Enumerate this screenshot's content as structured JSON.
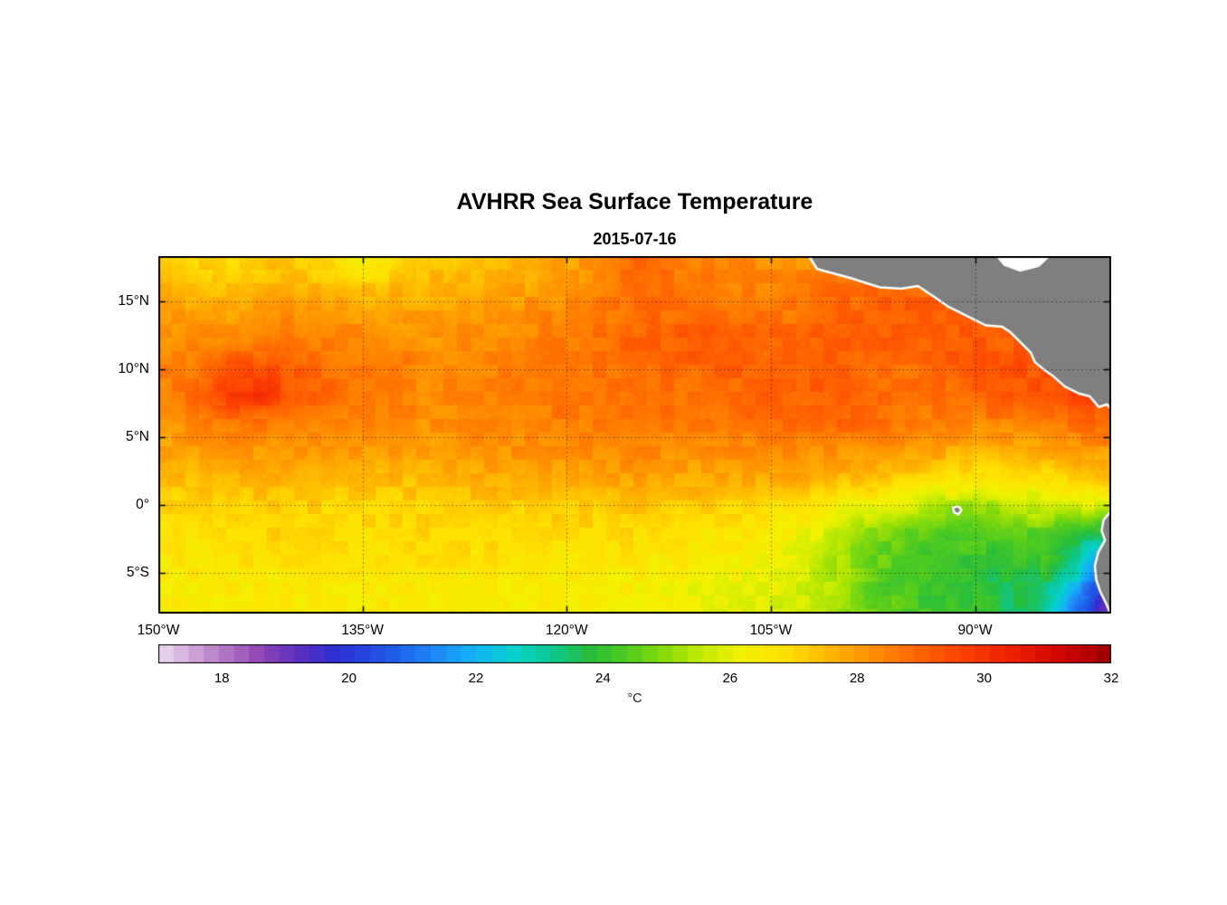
{
  "figure": {
    "title": "AVHRR Sea Surface Temperature",
    "subtitle": "2015-07-16",
    "background": "#ffffff"
  },
  "axes": {
    "lon_min": -150,
    "lon_max": -80,
    "lat_min": -8.0,
    "lat_max": 18.3,
    "grid_style": "dotted",
    "frame_color": "#000000",
    "x_ticks": [
      {
        "lon": -150,
        "label": "150°W"
      },
      {
        "lon": -135,
        "label": "135°W"
      },
      {
        "lon": -120,
        "label": "120°W"
      },
      {
        "lon": -105,
        "label": "105°W"
      },
      {
        "lon": -90,
        "label": "90°W"
      }
    ],
    "y_ticks": [
      {
        "lat": 15,
        "label": "15°N"
      },
      {
        "lat": 10,
        "label": "10°N"
      },
      {
        "lat": 5,
        "label": "5°N"
      },
      {
        "lat": 0,
        "label": "0°"
      },
      {
        "lat": -5,
        "label": "5°S"
      }
    ]
  },
  "colorbar": {
    "min": 17,
    "max": 32,
    "tick_values": [
      18,
      20,
      22,
      24,
      26,
      28,
      30,
      32
    ],
    "tick_labels": [
      "18",
      "20",
      "22",
      "24",
      "26",
      "28",
      "30",
      "32"
    ],
    "unit_label": "°C",
    "segments": 63
  },
  "colors": {
    "land": "#7f7f7f",
    "coast_outline": "#ffffff",
    "no_data": "#ffffff"
  },
  "chart_data": {
    "type": "heatmap",
    "title": "AVHRR Sea Surface Temperature",
    "date": "2015-07-16",
    "units": "°C",
    "value_range": [
      17,
      32
    ],
    "lons": [
      -150,
      -147.5,
      -145,
      -142.5,
      -140,
      -137.5,
      -135,
      -132.5,
      -130,
      -127.5,
      -125,
      -122.5,
      -120,
      -117.5,
      -115,
      -112.5,
      -110,
      -107.5,
      -105,
      -102.5,
      -100,
      -97.5,
      -95,
      -92.5,
      -90,
      -87.5,
      -85,
      -82.5,
      -80
    ],
    "lats": [
      18,
      16,
      14,
      12,
      10,
      8,
      6,
      4,
      2,
      0,
      -2,
      -4,
      -6,
      -8
    ],
    "sst": [
      [
        27.2,
        27.1,
        27.0,
        27.2,
        27.3,
        27.0,
        26.3,
        26.9,
        27.3,
        27.4,
        27.6,
        27.7,
        27.8,
        28.4,
        29.0,
        28.7,
        28.4,
        28.3,
        28.2,
        28.1,
        28.0,
        28.2,
        28.5,
        28.5,
        28.5,
        28.5,
        28.5,
        28.5,
        28.5
      ],
      [
        27.6,
        27.5,
        27.4,
        27.5,
        27.6,
        27.5,
        27.4,
        27.5,
        27.6,
        27.7,
        27.8,
        27.9,
        28.0,
        28.4,
        28.8,
        28.7,
        28.6,
        28.5,
        28.4,
        28.6,
        28.8,
        28.9,
        29.0,
        29.0,
        29.0,
        29.0,
        29.0,
        29.0,
        29.0
      ],
      [
        28.0,
        28.0,
        28.0,
        28.1,
        28.2,
        28.1,
        28.0,
        28.0,
        28.0,
        28.1,
        28.2,
        28.3,
        28.4,
        28.6,
        28.8,
        28.9,
        29.0,
        28.8,
        28.6,
        28.8,
        29.0,
        29.1,
        29.2,
        29.1,
        29.0,
        29.0,
        29.0,
        29.0,
        29.0
      ],
      [
        28.2,
        28.3,
        28.4,
        28.5,
        28.6,
        28.5,
        28.4,
        28.3,
        28.2,
        28.3,
        28.4,
        28.5,
        28.6,
        28.8,
        29.0,
        29.1,
        29.2,
        29.1,
        29.0,
        29.1,
        29.2,
        29.1,
        29.0,
        29.1,
        29.2,
        29.1,
        29.0,
        29.0,
        29.0
      ],
      [
        28.4,
        28.5,
        29.3,
        29.6,
        29.0,
        28.8,
        28.6,
        28.5,
        28.4,
        28.4,
        28.4,
        28.5,
        28.6,
        28.7,
        28.8,
        28.9,
        29.0,
        29.1,
        29.2,
        29.1,
        29.0,
        28.9,
        28.8,
        29.0,
        29.2,
        29.3,
        29.4,
        29.3,
        29.2
      ],
      [
        28.6,
        28.8,
        29.8,
        30.1,
        29.2,
        28.9,
        28.6,
        28.5,
        28.4,
        28.5,
        28.6,
        28.6,
        28.6,
        28.7,
        28.8,
        28.8,
        28.8,
        28.9,
        29.0,
        29.1,
        29.2,
        29.0,
        28.8,
        28.9,
        29.0,
        29.2,
        29.4,
        29.5,
        29.6
      ],
      [
        28.2,
        28.4,
        28.6,
        28.6,
        28.6,
        28.5,
        28.4,
        28.3,
        28.2,
        28.3,
        28.4,
        28.5,
        28.6,
        28.6,
        28.6,
        28.6,
        28.6,
        28.7,
        28.8,
        28.9,
        29.0,
        28.8,
        28.6,
        28.5,
        28.4,
        28.5,
        28.6,
        28.8,
        29.0
      ],
      [
        27.8,
        27.9,
        28.0,
        28.1,
        28.2,
        28.1,
        28.0,
        28.0,
        28.0,
        28.1,
        28.2,
        28.2,
        28.2,
        28.3,
        28.4,
        28.3,
        28.2,
        28.3,
        28.4,
        28.3,
        28.2,
        28.1,
        28.0,
        27.8,
        27.6,
        27.7,
        27.8,
        28.0,
        28.2
      ],
      [
        27.4,
        27.5,
        27.6,
        27.6,
        27.6,
        27.5,
        27.5,
        27.5,
        27.6,
        27.7,
        27.8,
        27.8,
        27.8,
        27.9,
        28.0,
        27.9,
        27.8,
        27.8,
        27.8,
        27.7,
        27.6,
        27.4,
        27.2,
        27.0,
        26.8,
        26.8,
        26.9,
        27.1,
        27.4
      ],
      [
        27.0,
        27.1,
        27.2,
        27.2,
        27.2,
        27.1,
        27.1,
        27.1,
        27.2,
        27.2,
        27.3,
        27.2,
        27.2,
        27.3,
        27.4,
        27.3,
        27.2,
        27.1,
        27.0,
        26.8,
        26.5,
        26.2,
        26.0,
        25.4,
        25.2,
        25.5,
        25.8,
        26.0,
        26.0
      ],
      [
        26.8,
        26.9,
        26.9,
        27.0,
        27.0,
        27.0,
        26.9,
        27.0,
        27.0,
        27.0,
        27.0,
        27.0,
        26.9,
        27.0,
        27.0,
        26.9,
        26.8,
        26.7,
        26.6,
        26.2,
        25.6,
        25.0,
        24.6,
        24.4,
        24.4,
        24.5,
        24.6,
        24.0,
        23.4
      ],
      [
        26.6,
        26.7,
        26.7,
        26.8,
        26.8,
        26.8,
        26.7,
        26.8,
        26.8,
        26.8,
        26.8,
        26.8,
        26.7,
        26.7,
        26.7,
        26.6,
        26.5,
        26.4,
        26.2,
        25.8,
        25.3,
        24.7,
        24.3,
        24.1,
        24.0,
        24.1,
        24.2,
        23.0,
        21.2
      ],
      [
        26.5,
        26.5,
        26.6,
        26.6,
        26.6,
        26.6,
        26.5,
        26.6,
        26.6,
        26.6,
        26.5,
        26.5,
        26.5,
        26.5,
        26.4,
        26.3,
        26.2,
        26.1,
        26.0,
        25.7,
        25.2,
        24.6,
        24.2,
        24.0,
        23.8,
        23.7,
        23.6,
        22.0,
        19.6
      ],
      [
        26.4,
        26.4,
        26.5,
        26.5,
        26.5,
        26.5,
        26.4,
        26.5,
        26.5,
        26.5,
        26.4,
        26.4,
        26.4,
        26.3,
        26.3,
        26.2,
        26.1,
        26.0,
        25.8,
        25.6,
        25.2,
        24.8,
        24.4,
        24.2,
        24.0,
        23.6,
        23.2,
        21.0,
        18.8
      ]
    ],
    "colormap_stops": [
      [
        17.0,
        "#ecdcf0"
      ],
      [
        17.8,
        "#c08cce"
      ],
      [
        18.6,
        "#9146b4"
      ],
      [
        19.2,
        "#5c2fc0"
      ],
      [
        19.8,
        "#2d2fd2"
      ],
      [
        20.6,
        "#2257e8"
      ],
      [
        21.4,
        "#1e8cf8"
      ],
      [
        22.0,
        "#12b4f4"
      ],
      [
        22.6,
        "#06d2cc"
      ],
      [
        23.2,
        "#0cc890"
      ],
      [
        23.8,
        "#28be3c"
      ],
      [
        24.4,
        "#52cc1e"
      ],
      [
        25.0,
        "#8cdc0a"
      ],
      [
        25.6,
        "#c8ec00"
      ],
      [
        26.2,
        "#f2f200"
      ],
      [
        26.9,
        "#ffe000"
      ],
      [
        27.6,
        "#ffb400"
      ],
      [
        28.3,
        "#ff8c00"
      ],
      [
        29.0,
        "#ff6400"
      ],
      [
        29.7,
        "#fc4000"
      ],
      [
        30.4,
        "#ee2200"
      ],
      [
        31.1,
        "#d40a00"
      ],
      [
        31.7,
        "#b40000"
      ],
      [
        32.0,
        "#960000"
      ]
    ],
    "land_polygons": [
      {
        "name": "mexico-central-america",
        "coast": [
          [
            -102.3,
            18.45
          ],
          [
            -101.6,
            17.35
          ],
          [
            -99.2,
            16.7
          ],
          [
            -97.0,
            16.0
          ],
          [
            -95.4,
            15.9
          ],
          [
            -94.2,
            16.1
          ],
          [
            -93.0,
            15.3
          ],
          [
            -92.0,
            14.6
          ],
          [
            -90.6,
            13.9
          ],
          [
            -89.2,
            13.2
          ],
          [
            -88.0,
            13.1
          ],
          [
            -87.4,
            12.7
          ],
          [
            -86.8,
            12.1
          ],
          [
            -85.9,
            11.2
          ],
          [
            -85.6,
            10.5
          ],
          [
            -85.0,
            10.0
          ],
          [
            -84.3,
            9.5
          ],
          [
            -83.4,
            8.7
          ],
          [
            -82.4,
            8.2
          ],
          [
            -81.6,
            8.0
          ],
          [
            -80.9,
            7.2
          ],
          [
            -80.3,
            7.4
          ],
          [
            -79.9,
            6.9
          ]
        ],
        "close": [
          [
            -79.5,
            6.9
          ],
          [
            -79.5,
            18.6
          ],
          [
            -102.6,
            18.6
          ]
        ]
      },
      {
        "name": "south-america",
        "coast": [
          [
            -80.0,
            -0.45
          ],
          [
            -80.55,
            -1.1
          ],
          [
            -80.7,
            -1.9
          ],
          [
            -80.45,
            -2.6
          ],
          [
            -80.95,
            -3.5
          ],
          [
            -81.2,
            -4.5
          ],
          [
            -81.1,
            -5.5
          ],
          [
            -80.8,
            -6.4
          ],
          [
            -80.35,
            -7.3
          ],
          [
            -80.0,
            -8.1
          ]
        ],
        "close": [
          [
            -79.5,
            -8.3
          ],
          [
            -79.5,
            -0.45
          ]
        ]
      },
      {
        "name": "galapagos-islands",
        "coast": [
          [
            -91.6,
            -0.2
          ],
          [
            -91.25,
            -0.1
          ],
          [
            -91.0,
            -0.35
          ],
          [
            -91.2,
            -0.7
          ],
          [
            -91.55,
            -0.55
          ]
        ],
        "close": []
      }
    ],
    "no_data_patches": [
      {
        "name": "caribbean-notch",
        "points": [
          [
            -88.6,
            18.45
          ],
          [
            -87.9,
            17.6
          ],
          [
            -86.7,
            17.15
          ],
          [
            -85.3,
            17.5
          ],
          [
            -84.3,
            18.45
          ]
        ]
      }
    ]
  }
}
